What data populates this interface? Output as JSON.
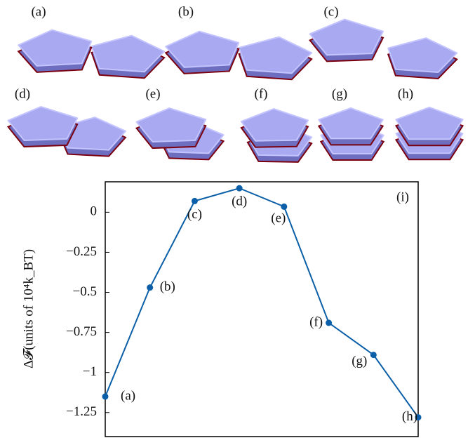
{
  "panels": [
    "(a)",
    "(b)",
    "(c)",
    "(d)",
    "(e)",
    "(f)",
    "(g)",
    "(h)"
  ],
  "chart_data": {
    "type": "line",
    "panel_label": "(i)",
    "y_label": "Δ𝓕(units of 10⁴k_BT)",
    "categories": [
      "(a)",
      "(b)",
      "(c)",
      "(d)",
      "(e)",
      "(f)",
      "(g)",
      "(h)"
    ],
    "values": [
      -1.15,
      -0.47,
      0.07,
      0.15,
      0.035,
      -0.69,
      -0.89,
      -1.28
    ],
    "color": "#0a5fa8",
    "ylim": [
      -1.4,
      0.19
    ],
    "yticks": [
      0,
      {
        "value": -0.25,
        "label": "−0.25"
      },
      {
        "value": -0.5,
        "label": "−0.5"
      },
      {
        "value": -0.75,
        "label": "−0.75"
      },
      {
        "value": -1,
        "label": "−1"
      },
      {
        "value": -1.25,
        "label": "−1.25"
      }
    ]
  }
}
